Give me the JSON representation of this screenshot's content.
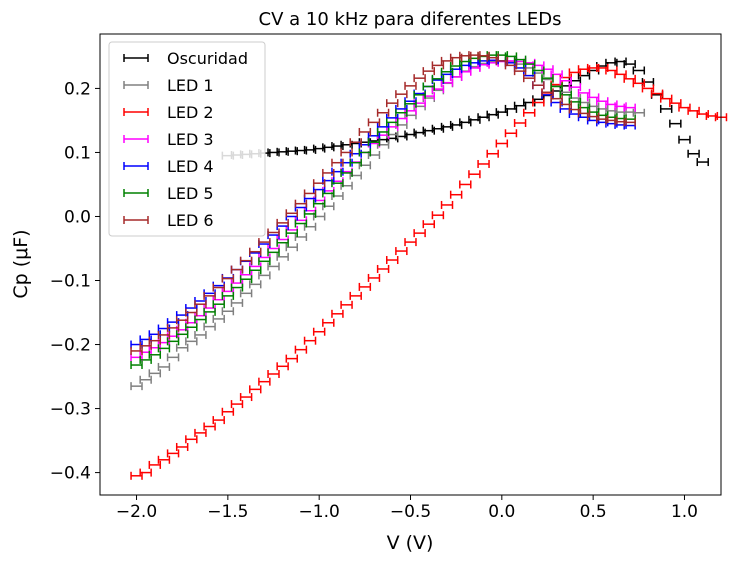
{
  "chart_data": {
    "type": "scatter",
    "title": "CV a 10 kHz para diferentes LEDs",
    "xlabel": "V (V)",
    "ylabel": "Cp (μF)",
    "xlim": [
      -2.2,
      1.2
    ],
    "ylim": [
      -0.435,
      0.285
    ],
    "xticks": [
      -2.0,
      -1.5,
      -1.0,
      -0.5,
      0.0,
      0.5,
      1.0
    ],
    "xtick_labels": [
      "−2.0",
      "−1.5",
      "−1.0",
      "−0.5",
      "0.0",
      "0.5",
      "1.0"
    ],
    "yticks": [
      -0.4,
      -0.3,
      -0.2,
      -0.1,
      0.0,
      0.1,
      0.2
    ],
    "ytick_labels": [
      "−0.4",
      "−0.3",
      "−0.2",
      "−0.1",
      "0.0",
      "0.1",
      "0.2"
    ],
    "grid": false,
    "legend": "top-left",
    "error_bars": "horizontal",
    "xerr": 0.03,
    "series": [
      {
        "name": "Oscuridad",
        "color": "#000000",
        "v_start": -1.5,
        "v_step": 0.05,
        "values": [
          0.095,
          0.096,
          0.097,
          0.098,
          0.099,
          0.1,
          0.101,
          0.102,
          0.103,
          0.104,
          0.106,
          0.108,
          0.11,
          0.112,
          0.114,
          0.116,
          0.118,
          0.12,
          0.122,
          0.125,
          0.128,
          0.131,
          0.134,
          0.137,
          0.14,
          0.143,
          0.147,
          0.151,
          0.155,
          0.159,
          0.163,
          0.168,
          0.173,
          0.178,
          0.183,
          0.189,
          0.196,
          0.204,
          0.212,
          0.22,
          0.228,
          0.235,
          0.24,
          0.242,
          0.238,
          0.228,
          0.21,
          0.19,
          0.168,
          0.145,
          0.12,
          0.098,
          0.085
        ]
      },
      {
        "name": "LED 1",
        "color": "#808080",
        "v_start": -2.0,
        "v_step": 0.05,
        "values": [
          -0.265,
          -0.255,
          -0.245,
          -0.235,
          -0.22,
          -0.205,
          -0.195,
          -0.185,
          -0.172,
          -0.16,
          -0.148,
          -0.135,
          -0.12,
          -0.106,
          -0.092,
          -0.078,
          -0.063,
          -0.048,
          -0.032,
          -0.016,
          0.0,
          0.016,
          0.032,
          0.048,
          0.064,
          0.08,
          0.096,
          0.112,
          0.128,
          0.143,
          0.158,
          0.172,
          0.185,
          0.197,
          0.208,
          0.218,
          0.227,
          0.234,
          0.239,
          0.242,
          0.243,
          0.242,
          0.238,
          0.232,
          0.224,
          0.214,
          0.204,
          0.194,
          0.185,
          0.178,
          0.172,
          0.168,
          0.165,
          0.163,
          0.163,
          0.162
        ]
      },
      {
        "name": "LED 2",
        "color": "#ff0000",
        "v_start": -2.0,
        "v_step": 0.05,
        "values": [
          -0.405,
          -0.4,
          -0.388,
          -0.38,
          -0.37,
          -0.36,
          -0.348,
          -0.338,
          -0.328,
          -0.318,
          -0.305,
          -0.293,
          -0.282,
          -0.27,
          -0.258,
          -0.246,
          -0.234,
          -0.222,
          -0.208,
          -0.194,
          -0.18,
          -0.166,
          -0.152,
          -0.138,
          -0.124,
          -0.11,
          -0.096,
          -0.082,
          -0.068,
          -0.054,
          -0.04,
          -0.026,
          -0.012,
          0.002,
          0.018,
          0.034,
          0.05,
          0.066,
          0.082,
          0.098,
          0.114,
          0.13,
          0.146,
          0.162,
          0.178,
          0.193,
          0.206,
          0.217,
          0.225,
          0.23,
          0.232,
          0.232,
          0.228,
          0.222,
          0.215,
          0.208,
          0.2,
          0.192,
          0.184,
          0.177,
          0.17,
          0.165,
          0.16,
          0.157,
          0.155
        ]
      },
      {
        "name": "LED 3",
        "color": "#ff00ff",
        "v_start": -2.0,
        "v_step": 0.05,
        "values": [
          -0.22,
          -0.212,
          -0.205,
          -0.197,
          -0.187,
          -0.177,
          -0.166,
          -0.155,
          -0.143,
          -0.13,
          -0.117,
          -0.104,
          -0.091,
          -0.078,
          -0.064,
          -0.05,
          -0.036,
          -0.021,
          -0.006,
          0.009,
          0.025,
          0.04,
          0.055,
          0.07,
          0.085,
          0.1,
          0.114,
          0.127,
          0.14,
          0.153,
          0.165,
          0.177,
          0.188,
          0.199,
          0.209,
          0.218,
          0.226,
          0.232,
          0.237,
          0.24,
          0.242,
          0.243,
          0.242,
          0.24,
          0.236,
          0.23,
          0.222,
          0.212,
          0.202,
          0.193,
          0.186,
          0.18,
          0.175,
          0.172,
          0.17
        ]
      },
      {
        "name": "LED 4",
        "color": "#0000ff",
        "v_start": -2.0,
        "v_step": 0.05,
        "values": [
          -0.2,
          -0.192,
          -0.184,
          -0.175,
          -0.165,
          -0.154,
          -0.143,
          -0.132,
          -0.12,
          -0.108,
          -0.096,
          -0.083,
          -0.07,
          -0.057,
          -0.043,
          -0.029,
          -0.015,
          0.0,
          0.014,
          0.028,
          0.042,
          0.056,
          0.07,
          0.084,
          0.098,
          0.112,
          0.126,
          0.14,
          0.154,
          0.168,
          0.18,
          0.192,
          0.203,
          0.213,
          0.222,
          0.23,
          0.236,
          0.24,
          0.243,
          0.244,
          0.243,
          0.24,
          0.232,
          0.22,
          0.205,
          0.19,
          0.178,
          0.168,
          0.16,
          0.155,
          0.15,
          0.147,
          0.145,
          0.143,
          0.142
        ]
      },
      {
        "name": "LED 5",
        "color": "#008000",
        "v_start": -2.0,
        "v_step": 0.05,
        "values": [
          -0.232,
          -0.224,
          -0.216,
          -0.206,
          -0.195,
          -0.184,
          -0.173,
          -0.161,
          -0.149,
          -0.137,
          -0.124,
          -0.111,
          -0.098,
          -0.084,
          -0.07,
          -0.056,
          -0.041,
          -0.026,
          -0.011,
          0.004,
          0.02,
          0.036,
          0.052,
          0.068,
          0.084,
          0.1,
          0.116,
          0.132,
          0.147,
          0.162,
          0.176,
          0.19,
          0.203,
          0.215,
          0.226,
          0.235,
          0.242,
          0.247,
          0.25,
          0.252,
          0.252,
          0.25,
          0.245,
          0.238,
          0.228,
          0.216,
          0.203,
          0.19,
          0.179,
          0.17,
          0.163,
          0.158,
          0.155,
          0.153,
          0.152
        ]
      },
      {
        "name": "LED 6",
        "color": "#a52a2a",
        "v_start": -2.0,
        "v_step": 0.05,
        "values": [
          -0.21,
          -0.202,
          -0.194,
          -0.185,
          -0.174,
          -0.162,
          -0.15,
          -0.137,
          -0.124,
          -0.111,
          -0.097,
          -0.083,
          -0.069,
          -0.055,
          -0.04,
          -0.025,
          -0.01,
          0.005,
          0.02,
          0.036,
          0.052,
          0.068,
          0.084,
          0.1,
          0.116,
          0.132,
          0.147,
          0.162,
          0.177,
          0.191,
          0.204,
          0.216,
          0.227,
          0.236,
          0.243,
          0.248,
          0.251,
          0.252,
          0.251,
          0.248,
          0.243,
          0.236,
          0.227,
          0.216,
          0.205,
          0.194,
          0.184,
          0.175,
          0.167,
          0.161,
          0.156,
          0.152,
          0.15,
          0.148,
          0.147
        ]
      }
    ]
  }
}
